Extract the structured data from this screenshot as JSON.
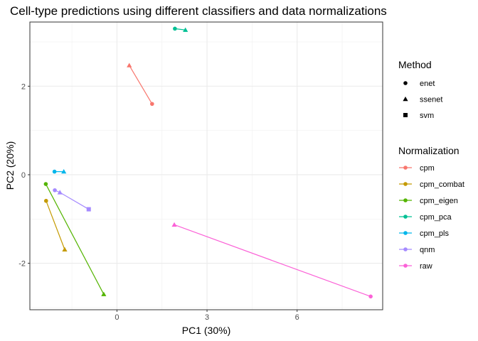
{
  "chart_data": {
    "type": "scatter",
    "title": "Cell-type predictions using different classifiers and data normalizations",
    "xlabel": "PC1 (30%)",
    "ylabel": "PC2 (20%)",
    "xlim": [
      -2.9,
      8.85
    ],
    "ylim": [
      -3.05,
      3.45
    ],
    "x_ticks": [
      0,
      3,
      6
    ],
    "x_tick_labels": [
      "0",
      "3",
      "6"
    ],
    "y_ticks": [
      -2,
      0,
      2
    ],
    "y_tick_labels": [
      "-2",
      "0",
      "2"
    ],
    "grid": true,
    "legend_position": "right",
    "method_legend": {
      "title": "Method",
      "entries": [
        {
          "name": "enet",
          "shape": "circle"
        },
        {
          "name": "ssenet",
          "shape": "triangle"
        },
        {
          "name": "svm",
          "shape": "square"
        }
      ]
    },
    "normalization_legend": {
      "title": "Normalization",
      "entries": [
        "cpm",
        "cpm_combat",
        "cpm_eigen",
        "cpm_pca",
        "cpm_pls",
        "qnm",
        "raw"
      ]
    },
    "series": [
      {
        "name": "cpm",
        "color": "#F8766D",
        "points": [
          {
            "method": "ssenet",
            "x": 0.41,
            "y": 2.47
          },
          {
            "method": "enet",
            "x": 1.17,
            "y": 1.6
          }
        ]
      },
      {
        "name": "cpm_combat",
        "color": "#C49A00",
        "points": [
          {
            "method": "enet",
            "x": -2.36,
            "y": -0.59
          },
          {
            "method": "ssenet",
            "x": -1.74,
            "y": -1.69
          }
        ]
      },
      {
        "name": "cpm_eigen",
        "color": "#53B400",
        "points": [
          {
            "method": "enet",
            "x": -2.37,
            "y": -0.21
          },
          {
            "method": "ssenet",
            "x": -0.44,
            "y": -2.7
          }
        ]
      },
      {
        "name": "cpm_pca",
        "color": "#00C094",
        "points": [
          {
            "method": "enet",
            "x": 1.93,
            "y": 3.3
          },
          {
            "method": "ssenet",
            "x": 2.28,
            "y": 3.27
          }
        ]
      },
      {
        "name": "cpm_pls",
        "color": "#00B6EB",
        "points": [
          {
            "method": "enet",
            "x": -2.08,
            "y": 0.07
          },
          {
            "method": "ssenet",
            "x": -1.77,
            "y": 0.07
          }
        ]
      },
      {
        "name": "qnm",
        "color": "#A58AFF",
        "points": [
          {
            "method": "enet",
            "x": -2.07,
            "y": -0.35
          },
          {
            "method": "ssenet",
            "x": -1.9,
            "y": -0.4
          },
          {
            "method": "svm",
            "x": -0.94,
            "y": -0.78
          }
        ]
      },
      {
        "name": "raw",
        "color": "#FB61D7",
        "points": [
          {
            "method": "ssenet",
            "x": 1.91,
            "y": -1.13
          },
          {
            "method": "enet",
            "x": 8.45,
            "y": -2.75
          }
        ]
      }
    ]
  }
}
